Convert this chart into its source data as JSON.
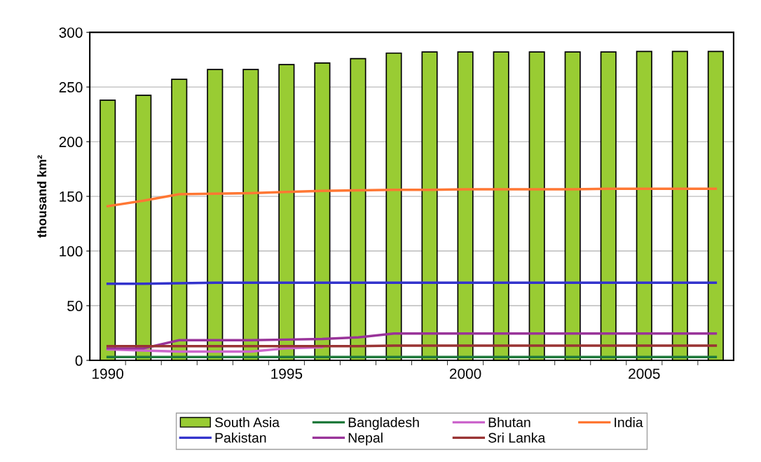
{
  "chart_data": {
    "type": "bar",
    "ylabel": "thousand km²",
    "categories": [
      "1990",
      null,
      null,
      null,
      null,
      "1995",
      null,
      null,
      null,
      null,
      "2000",
      null,
      null,
      null,
      null,
      "2005",
      null,
      null
    ],
    "ylim": [
      0,
      300
    ],
    "yticks": [
      0,
      50,
      100,
      150,
      200,
      250,
      300
    ],
    "grid": "y",
    "legend": "bottom",
    "series": [
      {
        "name": "South Asia",
        "color": "#99cc33",
        "values": [
          238,
          242.5,
          257,
          266,
          266,
          270.5,
          272,
          276,
          281,
          282,
          282,
          282,
          282,
          282,
          282,
          282.5,
          282.5,
          282.5
        ]
      },
      {
        "name": "Bangladesh",
        "type": "line",
        "color": "#1f7a3c",
        "values": [
          3,
          3,
          3,
          3,
          3,
          3,
          3,
          3,
          3,
          3,
          3,
          3,
          3,
          3,
          3,
          3,
          3,
          3
        ]
      },
      {
        "name": "Bhutan",
        "type": "line",
        "color": "#cc66cc",
        "values": [
          10,
          9,
          8,
          8,
          8,
          11,
          12,
          null,
          null,
          null,
          null,
          null,
          null,
          null,
          null,
          null,
          null,
          null
        ]
      },
      {
        "name": "India",
        "type": "line",
        "color": "#ff7733",
        "values": [
          141,
          146,
          152,
          152.5,
          153,
          154,
          155,
          155.5,
          156,
          156,
          156.5,
          156.5,
          156.5,
          156.5,
          157,
          157,
          157,
          157
        ]
      },
      {
        "name": "Pakistan",
        "type": "line",
        "color": "#3333cc",
        "values": [
          70,
          70,
          70.5,
          71,
          71,
          71,
          71,
          71,
          71,
          71,
          71,
          71,
          71,
          71,
          71,
          71,
          71,
          71
        ]
      },
      {
        "name": "Nepal",
        "type": "line",
        "color": "#993399",
        "values": [
          11,
          11,
          18.5,
          18.5,
          18.5,
          19,
          19.5,
          21,
          24.5,
          24.5,
          24.5,
          24.5,
          24.5,
          24.5,
          24.5,
          24.5,
          24.5,
          24.5
        ]
      },
      {
        "name": "Sri Lanka",
        "type": "line",
        "color": "#993333",
        "values": [
          13,
          13,
          13,
          13,
          13,
          13,
          13,
          13,
          13.5,
          13.5,
          13.5,
          13.5,
          13.5,
          13.5,
          13.5,
          13.5,
          13.5,
          13.5
        ]
      }
    ]
  }
}
